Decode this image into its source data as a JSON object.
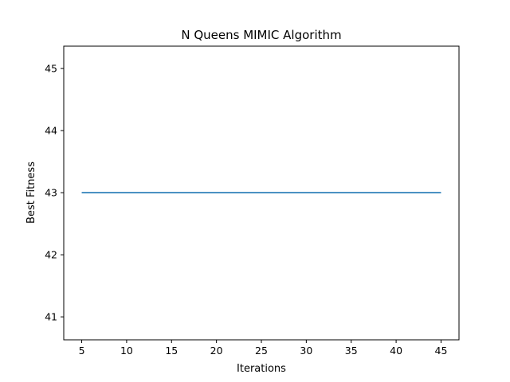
{
  "chart_data": {
    "type": "line",
    "title": "N Queens MIMIC Algorithm",
    "xlabel": "Iterations",
    "ylabel": "Best Fitness",
    "xlim": [
      3,
      47
    ],
    "ylim": [
      40.63,
      45.36
    ],
    "xticks": [
      5,
      10,
      15,
      20,
      25,
      30,
      35,
      40,
      45
    ],
    "yticks": [
      41,
      42,
      43,
      44,
      45
    ],
    "grid": false,
    "series": [
      {
        "name": "Best Fitness",
        "color": "#1f77b4",
        "x": [
          5,
          10,
          15,
          20,
          25,
          30,
          35,
          40,
          45
        ],
        "y": [
          43,
          43,
          43,
          43,
          43,
          43,
          43,
          43,
          43
        ]
      }
    ]
  }
}
